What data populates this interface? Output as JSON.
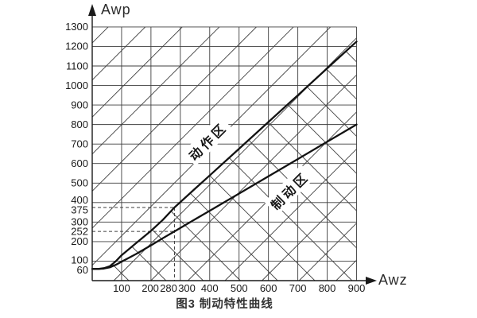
{
  "figure": {
    "caption": "图3  制动特性曲线",
    "y_axis_label": "Awp",
    "x_axis_label": "Awz"
  },
  "regions": {
    "action_zone": "动作区",
    "braking_zone": "制动区"
  },
  "chart_data": {
    "type": "line",
    "title": "图3 制动特性曲线",
    "xlabel": "Awz",
    "ylabel": "Awp",
    "xlim": [
      0,
      900
    ],
    "ylim": [
      0,
      1300
    ],
    "x_ticks": [
      100,
      200,
      280,
      300,
      400,
      500,
      600,
      700,
      800,
      900
    ],
    "y_ticks": [
      60,
      100,
      200,
      252,
      300,
      375,
      400,
      500,
      600,
      700,
      800,
      900,
      1000,
      1100,
      1200,
      1300
    ],
    "grid": {
      "horizontal_every": 100,
      "vertical_every": 100,
      "diagonal_lattice": true,
      "lattice_note": "ascending 45° lines across whole plot; descending 45° lines only below the upper curve"
    },
    "series": [
      {
        "name": "动作区 boundary (upper curve)",
        "points": [
          [
            0,
            60
          ],
          [
            20,
            60
          ],
          [
            40,
            64
          ],
          [
            60,
            74
          ],
          [
            80,
            99
          ],
          [
            100,
            130
          ],
          [
            150,
            193
          ],
          [
            200,
            255
          ],
          [
            240,
            311
          ],
          [
            280,
            375
          ],
          [
            350,
            471
          ],
          [
            400,
            539
          ],
          [
            500,
            676
          ],
          [
            600,
            813
          ],
          [
            700,
            950
          ],
          [
            800,
            1088
          ],
          [
            900,
            1225
          ]
        ]
      },
      {
        "name": "制动区 boundary (lower curve)",
        "points": [
          [
            0,
            60
          ],
          [
            20,
            60
          ],
          [
            40,
            62
          ],
          [
            60,
            68
          ],
          [
            80,
            81
          ],
          [
            100,
            97
          ],
          [
            150,
            137
          ],
          [
            200,
            181
          ],
          [
            240,
            217
          ],
          [
            280,
            252
          ],
          [
            350,
            314
          ],
          [
            400,
            358
          ],
          [
            500,
            446
          ],
          [
            600,
            535
          ],
          [
            700,
            623
          ],
          [
            800,
            712
          ],
          [
            900,
            800
          ]
        ]
      }
    ],
    "reference_lines": {
      "dashed_points": [
        [
          280,
          375
        ],
        [
          280,
          252
        ]
      ],
      "description": "horizontal dashed lines from y-axis at Awp=375 and Awp=252 to Awz=280; vertical dashed line at Awz=280 down to x-axis"
    },
    "annotations": [
      {
        "text": "动作区",
        "x": 392,
        "y": 717,
        "rotation": -45
      },
      {
        "text": "制动区",
        "x": 671,
        "y": 465,
        "rotation": -45
      }
    ],
    "legend": "none"
  }
}
